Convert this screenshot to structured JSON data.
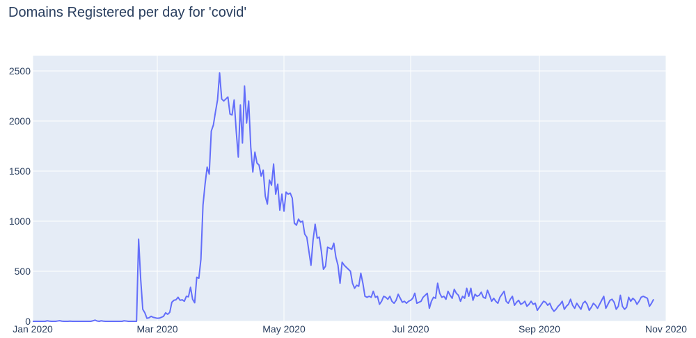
{
  "chart_data": {
    "type": "line",
    "title": "Domains Registered per day for 'covid'",
    "xlabel": "",
    "ylabel": "",
    "x_start": "2020-01-01",
    "x_end": "2020-11-01",
    "xlim": [
      "2020-01-01",
      "2020-11-01"
    ],
    "ylim": [
      0,
      2500
    ],
    "x_ticks": [
      {
        "date": "2020-01-01",
        "label": "Jan 2020"
      },
      {
        "date": "2020-03-01",
        "label": "Mar 2020"
      },
      {
        "date": "2020-05-01",
        "label": "May 2020"
      },
      {
        "date": "2020-07-01",
        "label": "Jul 2020"
      },
      {
        "date": "2020-09-01",
        "label": "Sep 2020"
      },
      {
        "date": "2020-11-01",
        "label": "Nov 2020"
      }
    ],
    "y_ticks": [
      {
        "value": 0,
        "label": "0"
      },
      {
        "value": 500,
        "label": "500"
      },
      {
        "value": 1000,
        "label": "1000"
      },
      {
        "value": 1500,
        "label": "1500"
      },
      {
        "value": 2000,
        "label": "2000"
      },
      {
        "value": 2500,
        "label": "2500"
      }
    ],
    "grid": true,
    "colors": {
      "background": "#e5ecf6",
      "grid": "#ffffff",
      "line": "#636efa",
      "text": "#2a3f5f"
    },
    "series": [
      {
        "values": [
          0,
          0,
          0,
          0,
          0,
          0,
          0,
          5,
          2,
          0,
          0,
          0,
          3,
          6,
          2,
          0,
          0,
          0,
          2,
          0,
          0,
          0,
          0,
          0,
          0,
          0,
          0,
          0,
          0,
          5,
          12,
          3,
          0,
          5,
          2,
          0,
          0,
          0,
          0,
          0,
          0,
          0,
          0,
          0,
          5,
          3,
          0,
          0,
          0,
          0,
          0,
          820,
          420,
          120,
          85,
          30,
          35,
          50,
          40,
          35,
          30,
          32,
          40,
          50,
          85,
          70,
          90,
          190,
          210,
          215,
          240,
          210,
          215,
          200,
          250,
          245,
          340,
          220,
          185,
          440,
          430,
          620,
          1160,
          1370,
          1540,
          1470,
          1900,
          1960,
          2090,
          2210,
          2480,
          2220,
          2200,
          2220,
          2240,
          2070,
          2060,
          2210,
          1900,
          1640,
          2160,
          1780,
          2350,
          1980,
          2200,
          1740,
          1490,
          1690,
          1580,
          1560,
          1450,
          1510,
          1250,
          1170,
          1410,
          1360,
          1570,
          1270,
          1370,
          1110,
          1270,
          1100,
          1290,
          1270,
          1280,
          1230,
          980,
          960,
          1020,
          990,
          1000,
          870,
          840,
          700,
          560,
          810,
          970,
          830,
          840,
          700,
          520,
          550,
          740,
          730,
          720,
          780,
          640,
          560,
          380,
          590,
          560,
          540,
          520,
          500,
          380,
          330,
          360,
          350,
          480,
          380,
          250,
          240,
          250,
          240,
          300,
          240,
          250,
          170,
          200,
          250,
          240,
          220,
          250,
          200,
          180,
          210,
          270,
          230,
          190,
          200,
          180,
          200,
          210,
          230,
          280,
          180,
          190,
          200,
          240,
          260,
          280,
          130,
          200,
          240,
          230,
          380,
          280,
          240,
          250,
          220,
          300,
          260,
          230,
          320,
          280,
          260,
          200,
          250,
          230,
          330,
          250,
          330,
          210,
          270,
          250,
          260,
          290,
          240,
          230,
          310,
          260,
          200,
          230,
          200,
          180,
          240,
          270,
          300,
          200,
          180,
          220,
          250,
          160,
          190,
          210,
          170,
          180,
          200,
          150,
          170,
          200,
          170,
          180,
          110,
          140,
          170,
          200,
          190,
          160,
          180,
          130,
          100,
          120,
          150,
          170,
          200,
          120,
          150,
          170,
          220,
          160,
          130,
          180,
          150,
          120,
          180,
          200,
          170,
          110,
          140,
          180,
          160,
          130,
          170,
          210,
          250,
          130,
          170,
          210,
          220,
          190,
          120,
          150,
          260,
          150,
          120,
          140,
          240,
          200,
          230,
          210,
          170,
          200,
          240,
          250,
          240,
          230,
          150,
          180,
          220
        ]
      }
    ]
  }
}
